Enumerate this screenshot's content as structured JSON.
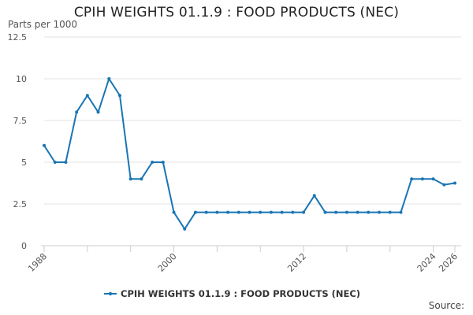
{
  "title": "CPIH WEIGHTS 01.1.9 : FOOD PRODUCTS (NEC)",
  "source_label": "Source:",
  "chart_data": {
    "type": "line",
    "title": "CPIH WEIGHTS 01.1.9 : FOOD PRODUCTS (NEC)",
    "ylabel": "Parts per 1000",
    "xlabel": "",
    "ylim": [
      0,
      12.5
    ],
    "xlim": [
      1988,
      2026
    ],
    "y_ticks": [
      0,
      2.5,
      5,
      7.5,
      10,
      12.5
    ],
    "y_tick_labels": [
      "0",
      "2.5",
      "5",
      "7.5",
      "10",
      "12.5"
    ],
    "x_ticks": [
      1988,
      2000,
      2012,
      2024,
      2026
    ],
    "x_tick_labels": [
      "1988",
      "2000",
      "2012",
      "2024",
      "2026"
    ],
    "grid": "horizontal",
    "legend_position": "bottom",
    "series": [
      {
        "name": "CPIH WEIGHTS 01.1.9 : FOOD PRODUCTS (NEC)",
        "color": "#1a75b4",
        "points": [
          [
            1988,
            6
          ],
          [
            1989,
            5
          ],
          [
            1990,
            5
          ],
          [
            1991,
            8
          ],
          [
            1992,
            9
          ],
          [
            1993,
            8
          ],
          [
            1994,
            10
          ],
          [
            1995,
            9
          ],
          [
            1996,
            4
          ],
          [
            1997,
            4
          ],
          [
            1998,
            5
          ],
          [
            1999,
            5
          ],
          [
            2000,
            2
          ],
          [
            2001,
            1
          ],
          [
            2002,
            2
          ],
          [
            2003,
            2
          ],
          [
            2004,
            2
          ],
          [
            2005,
            2
          ],
          [
            2006,
            2
          ],
          [
            2007,
            2
          ],
          [
            2008,
            2
          ],
          [
            2009,
            2
          ],
          [
            2010,
            2
          ],
          [
            2011,
            2
          ],
          [
            2012,
            2
          ],
          [
            2013,
            3
          ],
          [
            2014,
            2
          ],
          [
            2015,
            2
          ],
          [
            2016,
            2
          ],
          [
            2017,
            2
          ],
          [
            2018,
            2
          ],
          [
            2019,
            2
          ],
          [
            2020,
            2
          ],
          [
            2021,
            2
          ],
          [
            2022,
            4
          ],
          [
            2023,
            4
          ],
          [
            2024,
            4
          ],
          [
            2025,
            3.65
          ],
          [
            2026,
            3.75
          ]
        ]
      }
    ]
  }
}
